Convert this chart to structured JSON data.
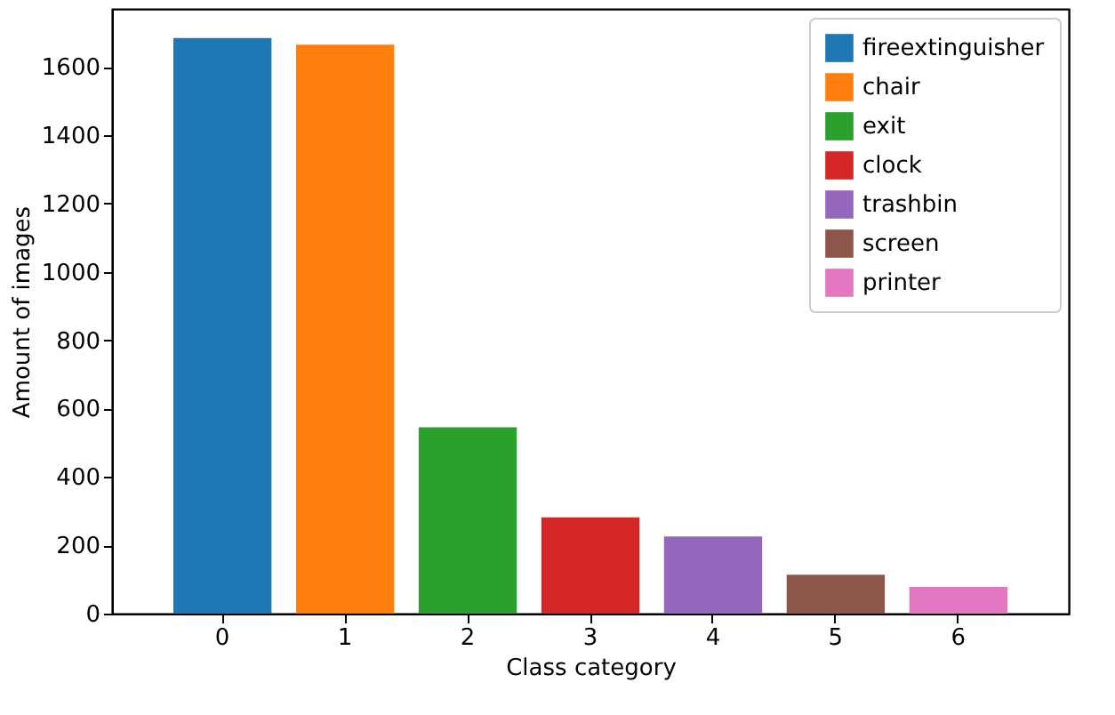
{
  "chart_data": {
    "type": "bar",
    "xlabel": "Class category",
    "ylabel": "Amount of images",
    "categories": [
      "0",
      "1",
      "2",
      "3",
      "4",
      "5",
      "6"
    ],
    "series": [
      {
        "name": "fireextinguisher",
        "color": "#1f77b4",
        "values": [
          1685,
          null,
          null,
          null,
          null,
          null,
          null
        ]
      },
      {
        "name": "chair",
        "color": "#ff7f0e",
        "values": [
          null,
          1665,
          null,
          null,
          null,
          null,
          null
        ]
      },
      {
        "name": "exit",
        "color": "#2ca02c",
        "values": [
          null,
          null,
          545,
          null,
          null,
          null,
          null
        ]
      },
      {
        "name": "clock",
        "color": "#d62728",
        "values": [
          null,
          null,
          null,
          282,
          null,
          null,
          null
        ]
      },
      {
        "name": "trashbin",
        "color": "#9467bd",
        "values": [
          null,
          null,
          null,
          null,
          226,
          null,
          null
        ]
      },
      {
        "name": "screen",
        "color": "#8c564b",
        "values": [
          null,
          null,
          null,
          null,
          null,
          114,
          null
        ]
      },
      {
        "name": "printer",
        "color": "#e377c2",
        "values": [
          null,
          null,
          null,
          null,
          null,
          null,
          78
        ]
      }
    ],
    "ylim": [
      0,
      1770
    ],
    "yticks": [
      0,
      200,
      400,
      600,
      800,
      1000,
      1200,
      1400,
      1600
    ],
    "grid": false,
    "legend": "top right"
  }
}
